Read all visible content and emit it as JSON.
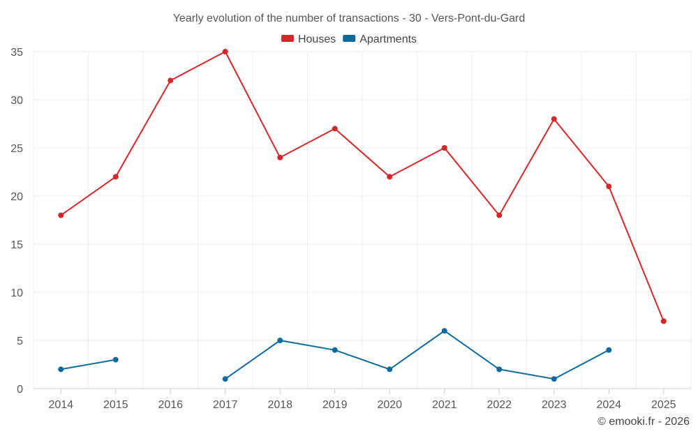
{
  "chart_data": {
    "type": "line",
    "title": "Yearly evolution of the number of transactions - 30 - Vers-Pont-du-Gard",
    "xlabel": "",
    "ylabel": "",
    "categories": [
      "2014",
      "2015",
      "2016",
      "2017",
      "2018",
      "2019",
      "2020",
      "2021",
      "2022",
      "2023",
      "2024",
      "2025"
    ],
    "ylim": [
      0,
      35
    ],
    "yticks": [
      0,
      5,
      10,
      15,
      20,
      25,
      30,
      35
    ],
    "grid": true,
    "legend_position": "top-center",
    "series": [
      {
        "name": "Houses",
        "color": "#d62728",
        "values": [
          18,
          22,
          32,
          35,
          24,
          27,
          22,
          25,
          18,
          28,
          21,
          7
        ]
      },
      {
        "name": "Apartments",
        "color": "#0d6a9e",
        "values": [
          2,
          3,
          null,
          1,
          5,
          4,
          2,
          6,
          2,
          1,
          4,
          null
        ]
      }
    ]
  },
  "credit": "© emooki.fr - 2026"
}
